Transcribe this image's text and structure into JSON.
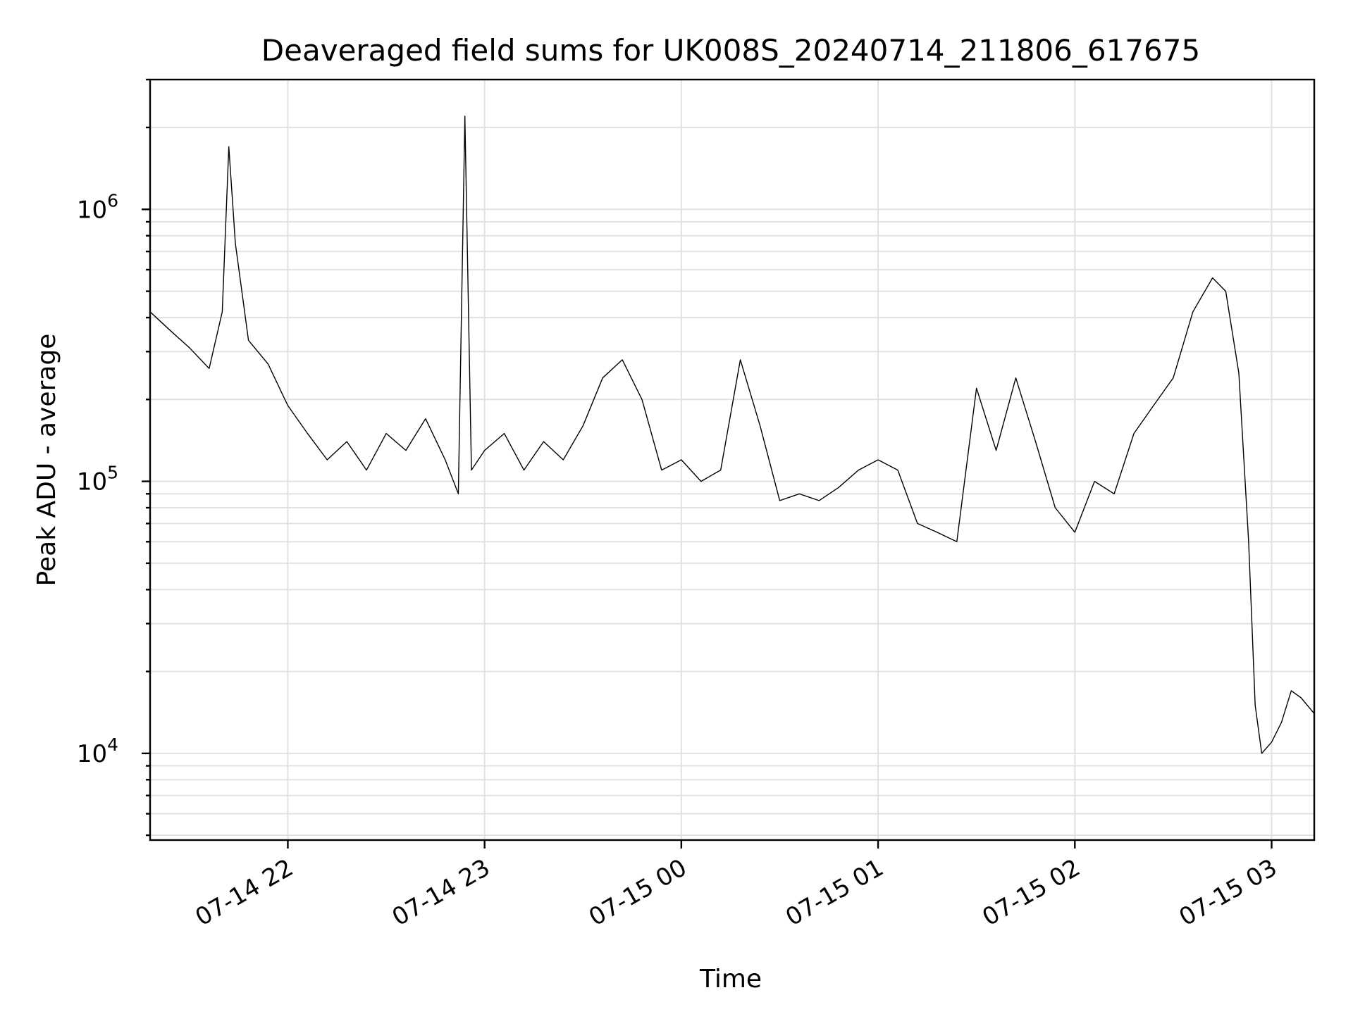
{
  "chart_data": {
    "type": "line",
    "title": "Deaveraged field sums for UK008S_20240714_211806_617675",
    "xlabel": "Time",
    "ylabel": "Peak ADU - average",
    "yscale": "log",
    "grid": true,
    "xlim": [
      "2024-07-14 21:18",
      "2024-07-15 03:13"
    ],
    "ylim": [
      4800,
      3000000
    ],
    "x_ticks": [
      {
        "value": "2024-07-14 22:00",
        "label": "07-14 22"
      },
      {
        "value": "2024-07-14 23:00",
        "label": "07-14 23"
      },
      {
        "value": "2024-07-15 00:00",
        "label": "07-15 00"
      },
      {
        "value": "2024-07-15 01:00",
        "label": "07-15 01"
      },
      {
        "value": "2024-07-15 02:00",
        "label": "07-15 02"
      },
      {
        "value": "2024-07-15 03:00",
        "label": "07-15 03"
      }
    ],
    "y_ticks": [
      {
        "value": 10000,
        "base": "10",
        "exp": "4"
      },
      {
        "value": 100000,
        "base": "10",
        "exp": "5"
      },
      {
        "value": 1000000,
        "base": "10",
        "exp": "6"
      }
    ],
    "series": [
      {
        "color": "#000000",
        "points": [
          [
            "2024-07-14 21:18",
            420000
          ],
          [
            "2024-07-14 21:24",
            360000
          ],
          [
            "2024-07-14 21:30",
            310000
          ],
          [
            "2024-07-14 21:36",
            260000
          ],
          [
            "2024-07-14 21:40",
            420000
          ],
          [
            "2024-07-14 21:42",
            1700000
          ],
          [
            "2024-07-14 21:44",
            750000
          ],
          [
            "2024-07-14 21:48",
            330000
          ],
          [
            "2024-07-14 21:54",
            270000
          ],
          [
            "2024-07-14 22:00",
            190000
          ],
          [
            "2024-07-14 22:06",
            150000
          ],
          [
            "2024-07-14 22:12",
            120000
          ],
          [
            "2024-07-14 22:18",
            140000
          ],
          [
            "2024-07-14 22:24",
            110000
          ],
          [
            "2024-07-14 22:30",
            150000
          ],
          [
            "2024-07-14 22:36",
            130000
          ],
          [
            "2024-07-14 22:42",
            170000
          ],
          [
            "2024-07-14 22:48",
            120000
          ],
          [
            "2024-07-14 22:52",
            90000
          ],
          [
            "2024-07-14 22:54",
            2200000
          ],
          [
            "2024-07-14 22:56",
            110000
          ],
          [
            "2024-07-14 23:00",
            130000
          ],
          [
            "2024-07-14 23:06",
            150000
          ],
          [
            "2024-07-14 23:12",
            110000
          ],
          [
            "2024-07-14 23:18",
            140000
          ],
          [
            "2024-07-14 23:24",
            120000
          ],
          [
            "2024-07-14 23:30",
            160000
          ],
          [
            "2024-07-14 23:36",
            240000
          ],
          [
            "2024-07-14 23:42",
            280000
          ],
          [
            "2024-07-14 23:48",
            200000
          ],
          [
            "2024-07-14 23:54",
            110000
          ],
          [
            "2024-07-15 00:00",
            120000
          ],
          [
            "2024-07-15 00:06",
            100000
          ],
          [
            "2024-07-15 00:12",
            110000
          ],
          [
            "2024-07-15 00:18",
            280000
          ],
          [
            "2024-07-15 00:24",
            160000
          ],
          [
            "2024-07-15 00:30",
            85000
          ],
          [
            "2024-07-15 00:36",
            90000
          ],
          [
            "2024-07-15 00:42",
            85000
          ],
          [
            "2024-07-15 00:48",
            95000
          ],
          [
            "2024-07-15 00:54",
            110000
          ],
          [
            "2024-07-15 01:00",
            120000
          ],
          [
            "2024-07-15 01:06",
            110000
          ],
          [
            "2024-07-15 01:12",
            70000
          ],
          [
            "2024-07-15 01:18",
            65000
          ],
          [
            "2024-07-15 01:24",
            60000
          ],
          [
            "2024-07-15 01:30",
            220000
          ],
          [
            "2024-07-15 01:36",
            130000
          ],
          [
            "2024-07-15 01:42",
            240000
          ],
          [
            "2024-07-15 01:48",
            140000
          ],
          [
            "2024-07-15 01:54",
            80000
          ],
          [
            "2024-07-15 02:00",
            65000
          ],
          [
            "2024-07-15 02:06",
            100000
          ],
          [
            "2024-07-15 02:12",
            90000
          ],
          [
            "2024-07-15 02:18",
            150000
          ],
          [
            "2024-07-15 02:24",
            190000
          ],
          [
            "2024-07-15 02:30",
            240000
          ],
          [
            "2024-07-15 02:36",
            420000
          ],
          [
            "2024-07-15 02:42",
            560000
          ],
          [
            "2024-07-15 02:46",
            500000
          ],
          [
            "2024-07-15 02:50",
            250000
          ],
          [
            "2024-07-15 02:53",
            60000
          ],
          [
            "2024-07-15 02:55",
            15000
          ],
          [
            "2024-07-15 02:57",
            10000
          ],
          [
            "2024-07-15 03:00",
            11000
          ],
          [
            "2024-07-15 03:03",
            13000
          ],
          [
            "2024-07-15 03:06",
            17000
          ],
          [
            "2024-07-15 03:09",
            16000
          ],
          [
            "2024-07-15 03:13",
            14000
          ]
        ]
      }
    ]
  }
}
